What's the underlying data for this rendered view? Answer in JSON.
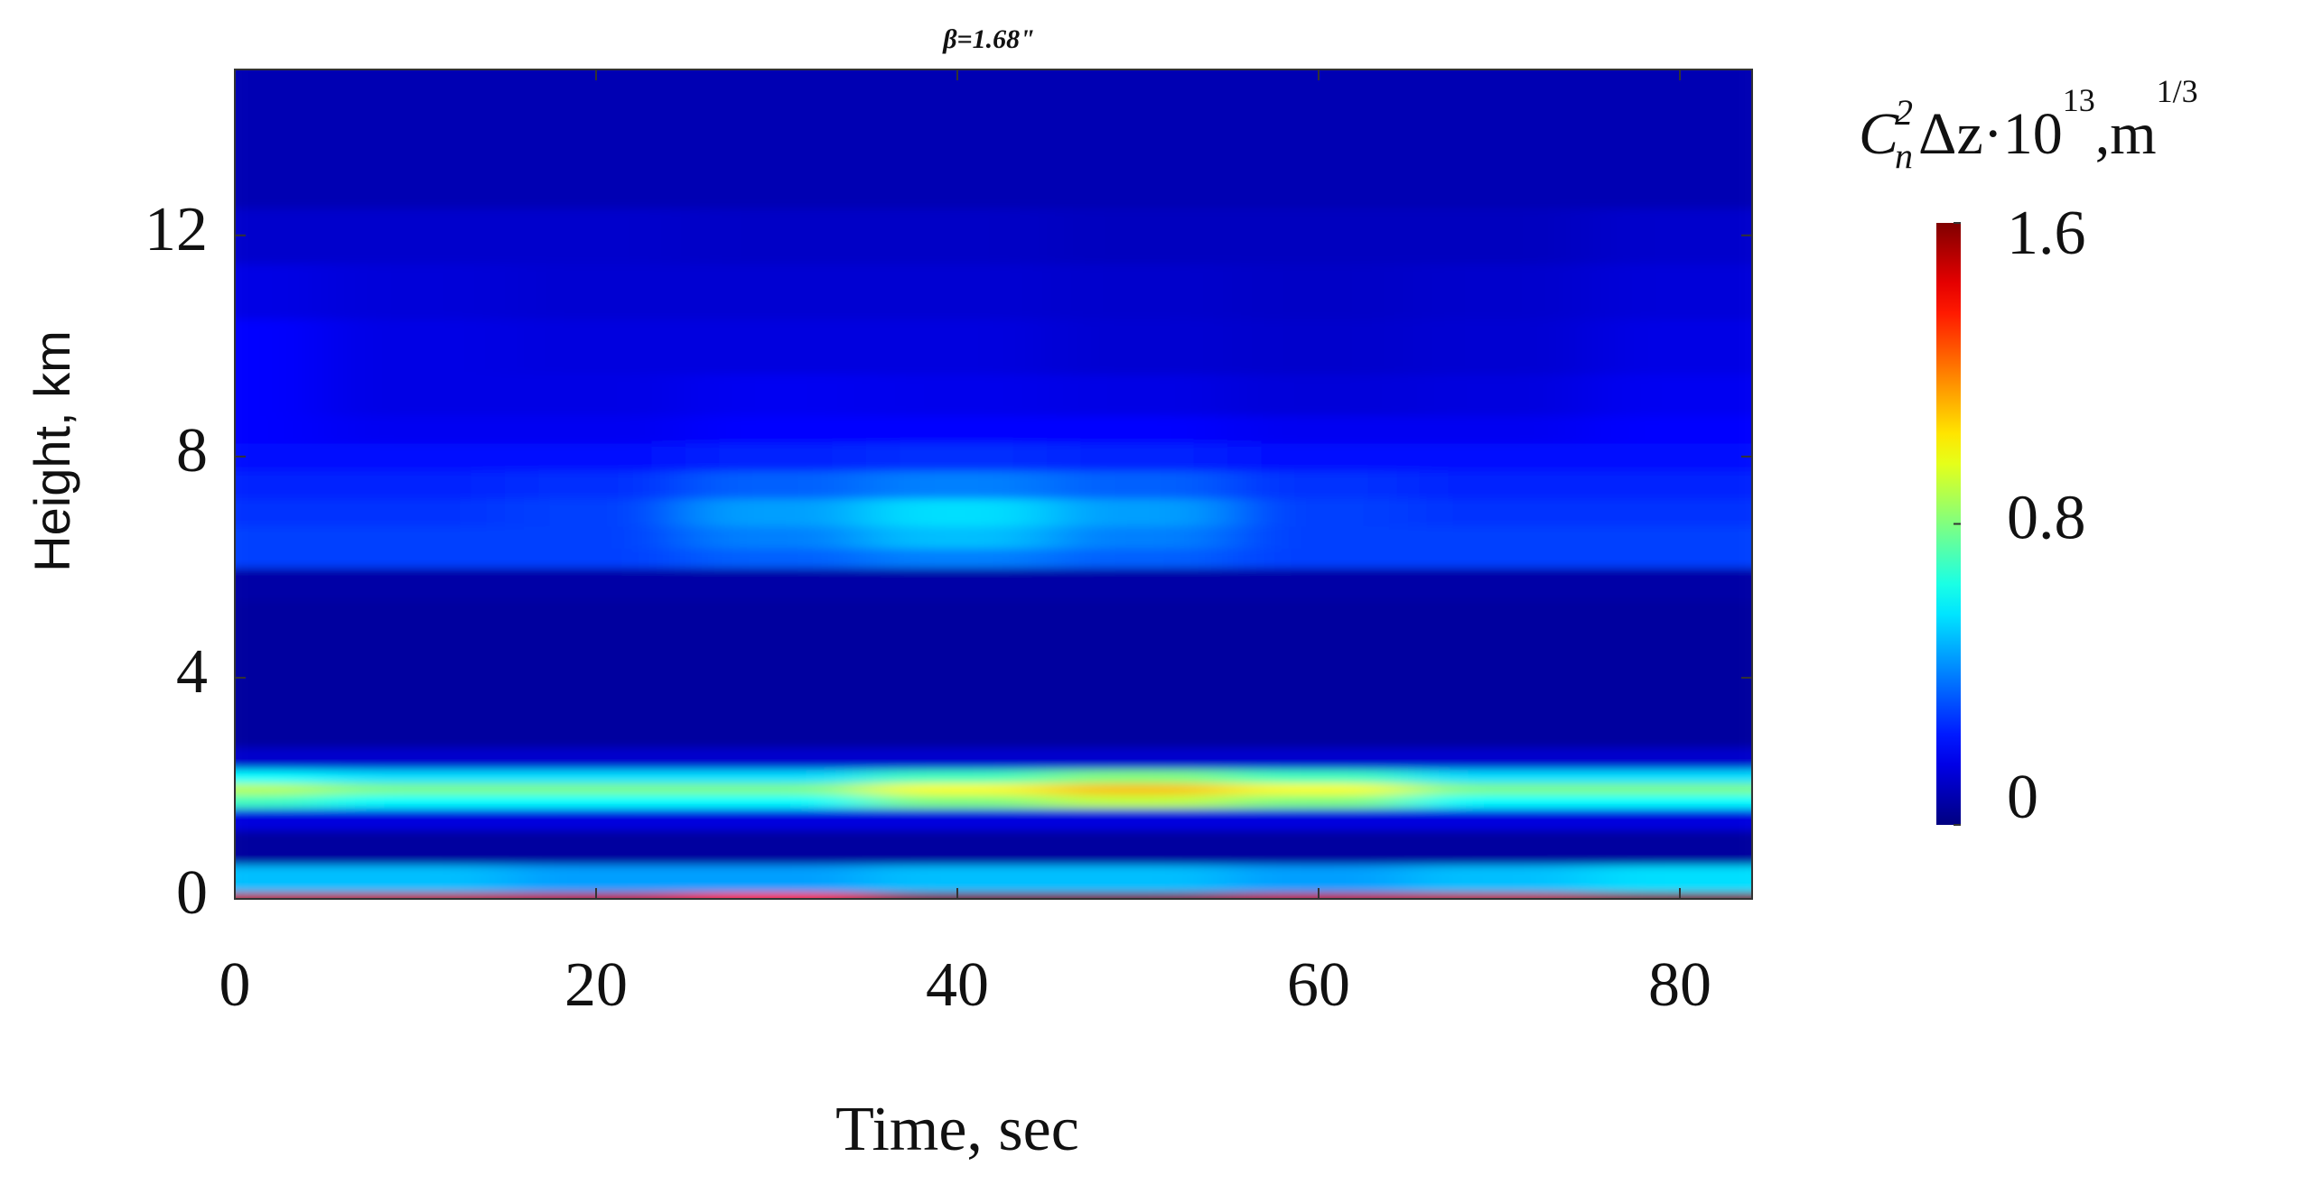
{
  "chart_data": {
    "type": "heatmap",
    "title": "β=1.68\"",
    "x_label": "Time, sec",
    "y_label": "Height, km",
    "colorbar_label": [
      "C",
      "n",
      "2",
      "Δz·10",
      "13",
      ",m",
      "1/3"
    ],
    "x": [
      0,
      10,
      20,
      30,
      40,
      50,
      60,
      70,
      80
    ],
    "y": [
      0,
      0.25,
      1,
      1.5,
      1.8,
      2.0,
      2.2,
      2.5,
      3,
      4,
      5,
      5.8,
      6.2,
      6.5,
      7,
      7.5,
      8,
      8.5,
      9,
      10,
      11,
      12,
      13,
      14,
      15
    ],
    "z": [
      [
        1.5,
        1.5,
        1.5,
        1.4,
        1.6,
        1.6,
        1.5,
        1.5,
        1.6
      ],
      [
        0.5,
        0.5,
        0.45,
        0.45,
        0.5,
        0.5,
        0.45,
        0.5,
        0.55
      ],
      [
        0.05,
        0.05,
        0.05,
        0.05,
        0.05,
        0.05,
        0.05,
        0.05,
        0.05
      ],
      [
        0.15,
        0.15,
        0.15,
        0.15,
        0.15,
        0.15,
        0.15,
        0.15,
        0.15
      ],
      [
        0.7,
        0.6,
        0.6,
        0.6,
        0.8,
        0.9,
        0.8,
        0.6,
        0.6
      ],
      [
        0.9,
        0.8,
        0.8,
        0.8,
        1.0,
        1.1,
        1.0,
        0.8,
        0.8
      ],
      [
        0.6,
        0.55,
        0.55,
        0.55,
        0.7,
        0.8,
        0.7,
        0.55,
        0.55
      ],
      [
        0.12,
        0.12,
        0.12,
        0.12,
        0.12,
        0.12,
        0.12,
        0.12,
        0.12
      ],
      [
        0.05,
        0.05,
        0.05,
        0.05,
        0.05,
        0.05,
        0.05,
        0.05,
        0.05
      ],
      [
        0.05,
        0.05,
        0.05,
        0.05,
        0.05,
        0.05,
        0.05,
        0.05,
        0.05
      ],
      [
        0.05,
        0.05,
        0.05,
        0.05,
        0.05,
        0.05,
        0.05,
        0.05,
        0.05
      ],
      [
        0.06,
        0.06,
        0.06,
        0.06,
        0.06,
        0.06,
        0.06,
        0.06,
        0.06
      ],
      [
        0.3,
        0.3,
        0.3,
        0.35,
        0.4,
        0.35,
        0.3,
        0.3,
        0.3
      ],
      [
        0.3,
        0.3,
        0.3,
        0.4,
        0.5,
        0.4,
        0.3,
        0.3,
        0.3
      ],
      [
        0.28,
        0.28,
        0.3,
        0.45,
        0.55,
        0.45,
        0.3,
        0.28,
        0.28
      ],
      [
        0.25,
        0.25,
        0.27,
        0.35,
        0.4,
        0.35,
        0.28,
        0.25,
        0.25
      ],
      [
        0.22,
        0.22,
        0.22,
        0.25,
        0.27,
        0.25,
        0.22,
        0.22,
        0.22
      ],
      [
        0.2,
        0.18,
        0.18,
        0.2,
        0.2,
        0.2,
        0.18,
        0.18,
        0.2
      ],
      [
        0.2,
        0.16,
        0.16,
        0.18,
        0.17,
        0.16,
        0.14,
        0.15,
        0.18
      ],
      [
        0.2,
        0.16,
        0.15,
        0.15,
        0.15,
        0.13,
        0.12,
        0.13,
        0.16
      ],
      [
        0.16,
        0.14,
        0.13,
        0.13,
        0.13,
        0.12,
        0.11,
        0.12,
        0.14
      ],
      [
        0.12,
        0.12,
        0.12,
        0.11,
        0.11,
        0.1,
        0.1,
        0.1,
        0.12
      ],
      [
        0.08,
        0.08,
        0.08,
        0.08,
        0.08,
        0.08,
        0.08,
        0.08,
        0.08
      ],
      [
        0.08,
        0.08,
        0.08,
        0.08,
        0.08,
        0.08,
        0.08,
        0.08,
        0.08
      ],
      [
        0.08,
        0.08,
        0.08,
        0.08,
        0.08,
        0.08,
        0.08,
        0.08,
        0.08
      ]
    ],
    "colormap": "jet",
    "clim": [
      0,
      1.6
    ],
    "cticks": [
      0,
      0.8,
      1.6
    ],
    "xlim": [
      0,
      84
    ],
    "xticks": [
      0,
      20,
      40,
      60,
      80
    ],
    "ylim": [
      0,
      15
    ],
    "yticks": [
      0,
      4,
      8,
      12
    ]
  }
}
